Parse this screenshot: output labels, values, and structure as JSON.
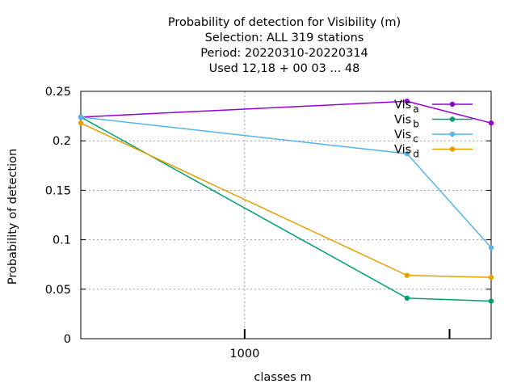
{
  "chart_data": {
    "type": "line",
    "title_lines": [
      "Probability of detection  for Visibility (m)",
      "Selection: ALL    319 stations",
      "Period: 20220310-20220314",
      "Used  12,18 + 00 03 ... 48"
    ],
    "xlabel": "classes m",
    "ylabel": "Probability of detection",
    "x_scale": "log",
    "xlim": [
      330,
      5300
    ],
    "ylim": [
      0,
      0.25
    ],
    "x_ticks": [
      {
        "value": 1000,
        "label": "1000"
      }
    ],
    "y_ticks": [
      {
        "value": 0,
        "label": "0"
      },
      {
        "value": 0.05,
        "label": "0.05"
      },
      {
        "value": 0.1,
        "label": "0.1"
      },
      {
        "value": 0.15,
        "label": "0.15"
      },
      {
        "value": 0.2,
        "label": "0.2"
      },
      {
        "value": 0.25,
        "label": "0.25"
      }
    ],
    "grid": true,
    "legend_position": "top-right",
    "series": [
      {
        "name": "Vis",
        "subscript": "a",
        "color": "#9400d3",
        "x": [
          330,
          3000,
          5300
        ],
        "values": [
          0.224,
          0.24,
          0.218
        ]
      },
      {
        "name": "Vis",
        "subscript": "b",
        "color": "#009e73",
        "x": [
          330,
          3000,
          5300
        ],
        "values": [
          0.224,
          0.041,
          0.038
        ]
      },
      {
        "name": "Vis",
        "subscript": "c",
        "color": "#56b4e9",
        "x": [
          330,
          3000,
          5300
        ],
        "values": [
          0.224,
          0.187,
          0.092
        ]
      },
      {
        "name": "Vis",
        "subscript": "d",
        "color": "#e69f00",
        "x": [
          330,
          3000,
          5300
        ],
        "values": [
          0.218,
          0.064,
          0.062
        ]
      }
    ]
  }
}
